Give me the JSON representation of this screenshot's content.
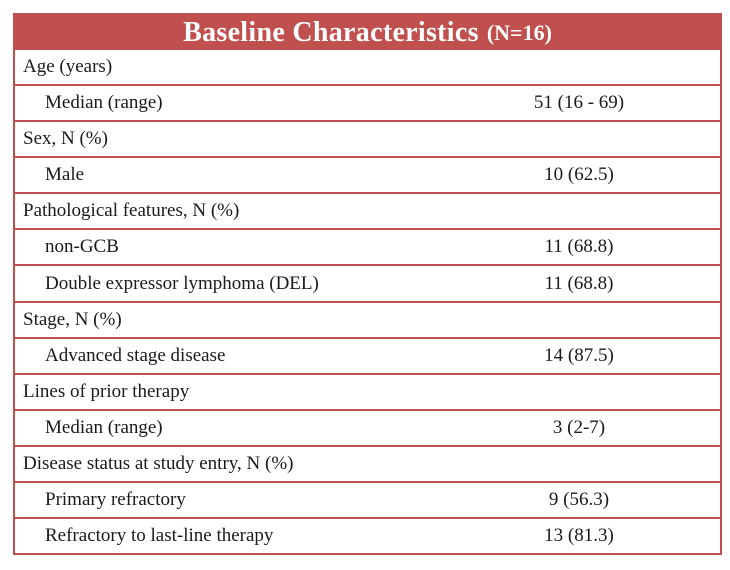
{
  "colors": {
    "header_bg": "#c0504d",
    "border": "#c0504d",
    "title_text": "#ffffff",
    "body_text": "#1a1a1a"
  },
  "table": {
    "title": "Baseline Characteristics",
    "title_suffix": "(N=16)",
    "rows": [
      {
        "label": "Age (years)",
        "value": "",
        "indent": false
      },
      {
        "label": "Median (range)",
        "value": "51 (16 - 69)",
        "indent": true
      },
      {
        "label": "Sex, N (%)",
        "value": "",
        "indent": false
      },
      {
        "label": "Male",
        "value": "10 (62.5)",
        "indent": true
      },
      {
        "label": "Pathological features, N (%)",
        "value": "",
        "indent": false
      },
      {
        "label": "non-GCB",
        "value": "11 (68.8)",
        "indent": true
      },
      {
        "label": "Double expressor lymphoma (DEL)",
        "value": "11 (68.8)",
        "indent": true
      },
      {
        "label": "Stage, N (%)",
        "value": "",
        "indent": false
      },
      {
        "label": "Advanced stage disease",
        "value": "14 (87.5)",
        "indent": true
      },
      {
        "label": "Lines of prior therapy",
        "value": "",
        "indent": false
      },
      {
        "label": "Median (range)",
        "value": "3 (2-7)",
        "indent": true
      },
      {
        "label": "Disease status at study entry, N (%)",
        "value": "",
        "indent": false
      },
      {
        "label": "Primary refractory",
        "value": "9 (56.3)",
        "indent": true
      },
      {
        "label": "Refractory to last-line therapy",
        "value": "13 (81.3)",
        "indent": true
      }
    ]
  }
}
